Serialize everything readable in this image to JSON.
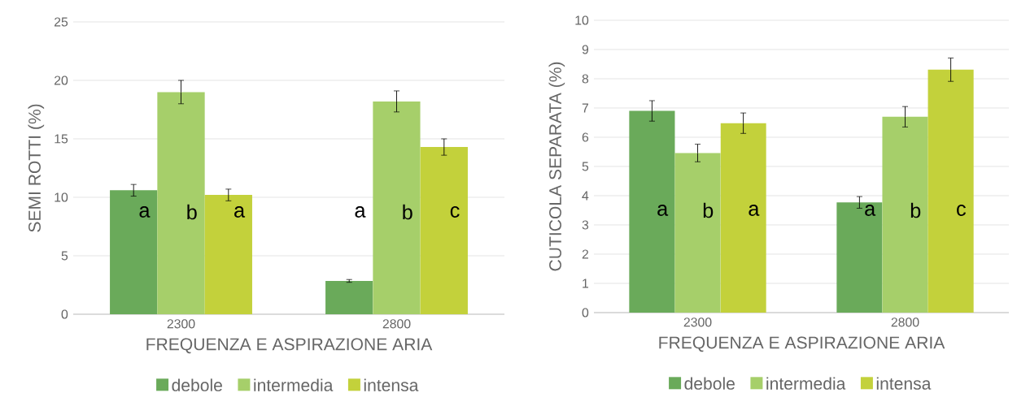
{
  "chart_data": [
    {
      "type": "bar",
      "xlabel": "FREQUENZA E ASPIRAZIONE ARIA",
      "ylabel": "SEMI ROTTI  (%)",
      "categories": [
        "2300",
        "2800"
      ],
      "series": [
        {
          "name": "debole",
          "color": "#6aaa5a",
          "values": [
            10.6,
            2.85
          ],
          "errors": [
            0.5,
            0.12
          ]
        },
        {
          "name": "intermedia",
          "color": "#a6cf6a",
          "values": [
            19.0,
            18.2
          ],
          "errors": [
            1.0,
            0.9
          ]
        },
        {
          "name": "intensa",
          "color": "#c3d13b",
          "values": [
            10.2,
            14.3
          ],
          "errors": [
            0.5,
            0.7
          ]
        }
      ],
      "ylim": [
        0,
        25
      ],
      "yticks": [
        0,
        5,
        10,
        15,
        20,
        25
      ],
      "grid": "y",
      "legend": "bottom",
      "annotations": [
        "a",
        "b",
        "a",
        "a",
        "b",
        "c"
      ]
    },
    {
      "type": "bar",
      "xlabel": "FREQUENZA E ASPIRAZIONE ARIA",
      "ylabel": "CUTICOLA SEPARATA  (%)",
      "categories": [
        "2300",
        "2800"
      ],
      "series": [
        {
          "name": "debole",
          "color": "#6aaa5a",
          "values": [
            6.9,
            3.77
          ],
          "errors": [
            0.35,
            0.2
          ]
        },
        {
          "name": "intermedia",
          "color": "#a6cf6a",
          "values": [
            5.46,
            6.7
          ],
          "errors": [
            0.3,
            0.35
          ]
        },
        {
          "name": "intensa",
          "color": "#c3d13b",
          "values": [
            6.48,
            8.31
          ],
          "errors": [
            0.35,
            0.4
          ]
        }
      ],
      "ylim": [
        0,
        10
      ],
      "yticks": [
        0,
        1,
        2,
        3,
        4,
        5,
        6,
        7,
        8,
        9,
        10
      ],
      "grid": "y",
      "legend": "bottom",
      "annotations": [
        "a",
        "b",
        "a",
        "a",
        "b",
        "c"
      ]
    }
  ]
}
